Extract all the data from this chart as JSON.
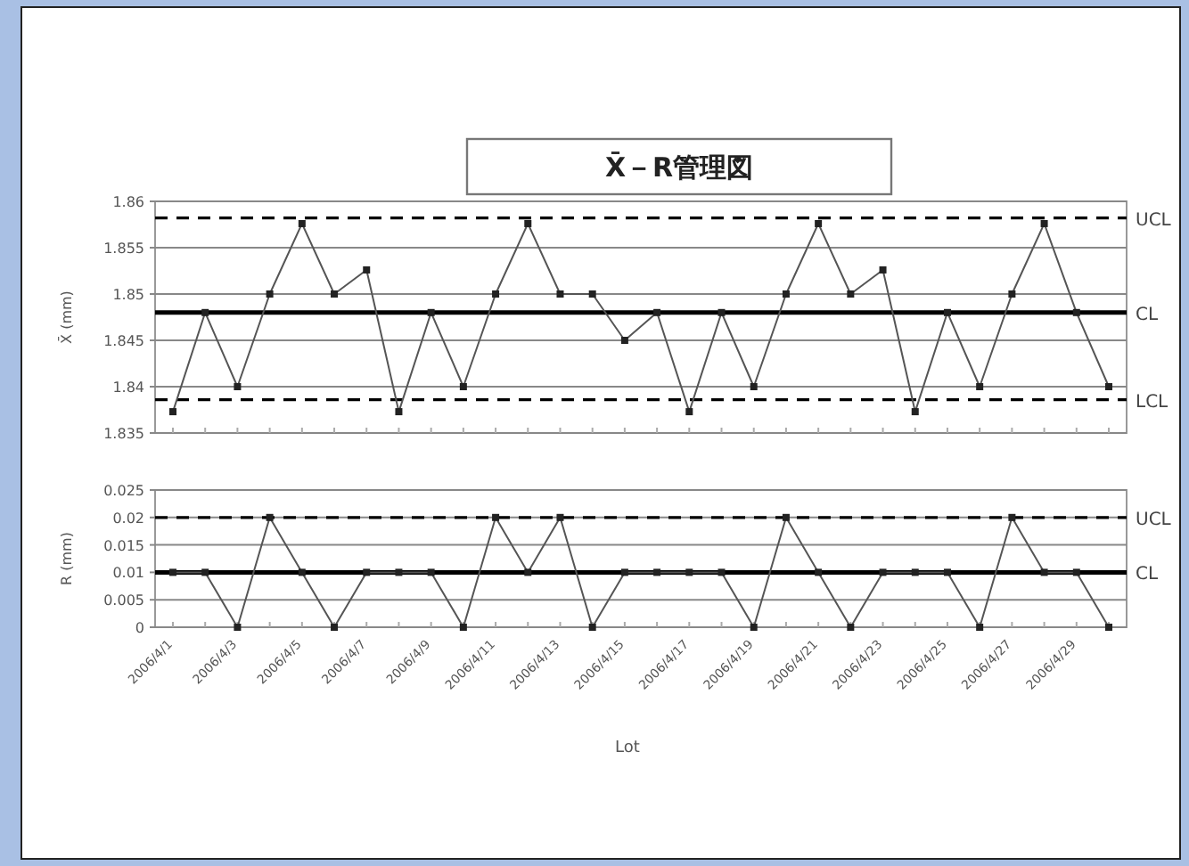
{
  "chart_data": [
    {
      "type": "line",
      "title": "X̄－R管理図",
      "ylabel": "X̄ (mm)",
      "categories": [
        "2006/4/1",
        null,
        "2006/4/3",
        null,
        "2006/4/5",
        null,
        "2006/4/7",
        null,
        "2006/4/9",
        null,
        "2006/4/11",
        null,
        "2006/4/13",
        null,
        "2006/4/15",
        null,
        "2006/4/17",
        null,
        "2006/4/19",
        null,
        "2006/4/21",
        null,
        "2006/4/23",
        null,
        "2006/4/25",
        null,
        "2006/4/27",
        null,
        "2006/4/29",
        null
      ],
      "series": [
        {
          "color": "#555555",
          "values": [
            1.8373,
            1.848,
            1.84,
            1.85,
            1.8576,
            1.85,
            1.8526,
            1.8373,
            1.848,
            1.84,
            1.85,
            1.8576,
            1.85,
            1.85,
            1.845,
            1.848,
            1.8373,
            1.848,
            1.84,
            1.85,
            1.8576,
            1.85,
            1.8526,
            1.8373,
            1.848,
            1.84,
            1.85,
            1.8576,
            1.848,
            1.84
          ]
        }
      ],
      "ylim": [
        1.835,
        1.86
      ],
      "yticks": [
        1.835,
        1.84,
        1.845,
        1.85,
        1.855,
        1.86
      ],
      "grid": "y",
      "marker": "square",
      "tick_labels": "y",
      "ref_lines": [
        {
          "axis": "y",
          "value": 1.8582,
          "label": "UCL",
          "line_style": "dashed",
          "color": "#000000"
        },
        {
          "axis": "y",
          "value": 1.848,
          "label": "CL",
          "line_style": "solid",
          "color": "#000000"
        },
        {
          "axis": "y",
          "value": 1.8386,
          "label": "LCL",
          "line_style": "dashed",
          "color": "#000000"
        }
      ]
    },
    {
      "type": "line",
      "ylabel": "R (mm)",
      "xlabel": "Lot",
      "categories": [
        "2006/4/1",
        null,
        "2006/4/3",
        null,
        "2006/4/5",
        null,
        "2006/4/7",
        null,
        "2006/4/9",
        null,
        "2006/4/11",
        null,
        "2006/4/13",
        null,
        "2006/4/15",
        null,
        "2006/4/17",
        null,
        "2006/4/19",
        null,
        "2006/4/21",
        null,
        "2006/4/23",
        null,
        "2006/4/25",
        null,
        "2006/4/27",
        null,
        "2006/4/29",
        null
      ],
      "series": [
        {
          "color": "#555555",
          "values": [
            0.01,
            0.01,
            0,
            0.02,
            0.01,
            0,
            0.01,
            0.01,
            0.01,
            0,
            0.02,
            0.01,
            0.02,
            0,
            0.01,
            0.01,
            0.01,
            0.01,
            0,
            0.02,
            0.01,
            0,
            0.01,
            0.01,
            0.01,
            0,
            0.02,
            0.01,
            0.01,
            0
          ]
        }
      ],
      "ylim": [
        0,
        0.025
      ],
      "yticks": [
        0,
        0.005,
        0.01,
        0.015,
        0.02,
        0.025
      ],
      "grid": "y",
      "marker": "square",
      "ref_lines": [
        {
          "axis": "y",
          "value": 0.02,
          "label": "UCL",
          "line_style": "dashed",
          "color": "#000000"
        },
        {
          "axis": "y",
          "value": 0.01,
          "label": "CL",
          "line_style": "solid",
          "color": "#000000"
        }
      ]
    }
  ]
}
